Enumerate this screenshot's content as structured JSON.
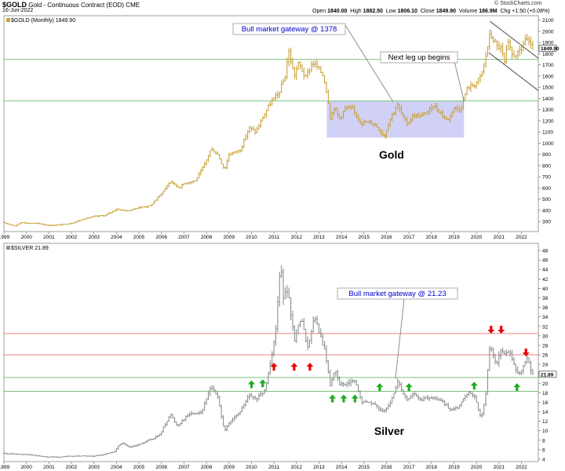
{
  "header": {
    "symbol": "$GOLD",
    "description": "Gold - Continuous Contract (EOD) CME",
    "date": "16-Jun-2022",
    "copyright": "© StockCharts.com",
    "open_label": "Open",
    "open": "1840.00",
    "high_label": "High",
    "high": "1882.50",
    "low_label": "Low",
    "low": "1806.10",
    "close_label": "Close",
    "close": "1849.90",
    "volume_label": "Volume",
    "volume": "186.9M",
    "chg_label": "Chg",
    "chg": "+1.50 (+0.08%)"
  },
  "colors": {
    "gold_bar": "#caa23a",
    "silver_bar": "#8a9094",
    "green_line": "#7cc27c",
    "red_line": "#f08080",
    "box_fill": "#c9c9f7",
    "annotation_text": "#0000cc",
    "arrow_red": "#ee0000",
    "arrow_green": "#22aa22"
  },
  "chart_data": [
    {
      "type": "ohlc",
      "legend": "$GOLD (Monthly) 1849.90",
      "label": "Gold",
      "last_value": "1849.90",
      "x_ticks": [
        "1999",
        "2000",
        "2001",
        "2002",
        "2003",
        "2004",
        "2005",
        "2006",
        "2007",
        "2008",
        "2009",
        "2010",
        "2011",
        "2012",
        "2013",
        "2014",
        "2015",
        "2016",
        "2017",
        "2018",
        "2019",
        "2020",
        "2021",
        "2022"
      ],
      "y_ticks": [
        300,
        400,
        500,
        600,
        700,
        800,
        900,
        1000,
        1100,
        1200,
        1300,
        1400,
        1500,
        1600,
        1700,
        1800,
        1900,
        2000,
        2100
      ],
      "ylim": [
        210,
        2140
      ],
      "xlim": [
        1999.0,
        2022.75
      ],
      "horizontal_lines": [
        1378,
        1750
      ],
      "shaded_box": {
        "x_start": 2013.35,
        "x_end": 2019.45,
        "y_low": 1050,
        "y_high": 1375
      },
      "channel_lines": [
        {
          "points": [
            [
              2020.6,
              2090
            ],
            [
              2022.75,
              1760
            ]
          ]
        },
        {
          "points": [
            [
              2020.55,
              1810
            ],
            [
              2022.75,
              1470
            ]
          ]
        }
      ],
      "annotations": [
        {
          "text": "Bull market gateway @ 1378",
          "boxed": true,
          "pointer_to": [
            2016.3,
            1370
          ]
        },
        {
          "text": "Next leg up begins",
          "boxed": true,
          "pointer_to": [
            2019.45,
            1375
          ]
        }
      ],
      "anchors": [
        [
          1999.0,
          288
        ],
        [
          1999.5,
          262
        ],
        [
          1999.8,
          295
        ],
        [
          2000.0,
          285
        ],
        [
          2000.5,
          283
        ],
        [
          2001.0,
          265
        ],
        [
          2001.5,
          270
        ],
        [
          2002.0,
          285
        ],
        [
          2002.5,
          320
        ],
        [
          2003.0,
          345
        ],
        [
          2003.5,
          355
        ],
        [
          2004.0,
          410
        ],
        [
          2004.5,
          395
        ],
        [
          2005.0,
          425
        ],
        [
          2005.5,
          440
        ],
        [
          2006.0,
          550
        ],
        [
          2006.4,
          660
        ],
        [
          2006.8,
          600
        ],
        [
          2007.0,
          640
        ],
        [
          2007.5,
          665
        ],
        [
          2007.9,
          800
        ],
        [
          2008.2,
          950
        ],
        [
          2008.5,
          900
        ],
        [
          2008.8,
          760
        ],
        [
          2009.0,
          900
        ],
        [
          2009.5,
          940
        ],
        [
          2009.9,
          1140
        ],
        [
          2010.2,
          1100
        ],
        [
          2010.5,
          1230
        ],
        [
          2010.9,
          1380
        ],
        [
          2011.2,
          1440
        ],
        [
          2011.5,
          1600
        ],
        [
          2011.65,
          1830
        ],
        [
          2011.9,
          1600
        ],
        [
          2012.1,
          1720
        ],
        [
          2012.4,
          1580
        ],
        [
          2012.7,
          1720
        ],
        [
          2012.9,
          1690
        ],
        [
          2013.2,
          1600
        ],
        [
          2013.4,
          1400
        ],
        [
          2013.5,
          1230
        ],
        [
          2013.7,
          1330
        ],
        [
          2013.9,
          1220
        ],
        [
          2014.2,
          1320
        ],
        [
          2014.5,
          1300
        ],
        [
          2014.9,
          1180
        ],
        [
          2015.2,
          1190
        ],
        [
          2015.5,
          1170
        ],
        [
          2015.9,
          1060
        ],
        [
          2016.2,
          1240
        ],
        [
          2016.5,
          1340
        ],
        [
          2016.9,
          1170
        ],
        [
          2017.2,
          1250
        ],
        [
          2017.5,
          1240
        ],
        [
          2017.9,
          1290
        ],
        [
          2018.1,
          1340
        ],
        [
          2018.5,
          1250
        ],
        [
          2018.7,
          1200
        ],
        [
          2019.0,
          1320
        ],
        [
          2019.3,
          1300
        ],
        [
          2019.45,
          1410
        ],
        [
          2019.6,
          1500
        ],
        [
          2019.9,
          1520
        ],
        [
          2020.2,
          1600
        ],
        [
          2020.4,
          1760
        ],
        [
          2020.6,
          1980
        ],
        [
          2020.9,
          1870
        ],
        [
          2021.1,
          1850
        ],
        [
          2021.25,
          1720
        ],
        [
          2021.4,
          1900
        ],
        [
          2021.6,
          1780
        ],
        [
          2021.9,
          1810
        ],
        [
          2022.1,
          1900
        ],
        [
          2022.2,
          1950
        ],
        [
          2022.35,
          1890
        ],
        [
          2022.46,
          1849.9
        ]
      ]
    },
    {
      "type": "ohlc",
      "legend": "$SILVER 21.89",
      "label": "Silver",
      "last_value": "21.89",
      "x_ticks": [
        "1999",
        "2000",
        "2001",
        "2002",
        "2003",
        "2004",
        "2005",
        "2006",
        "2007",
        "2008",
        "2009",
        "2010",
        "2011",
        "2012",
        "2013",
        "2014",
        "2015",
        "2016",
        "2017",
        "2018",
        "2019",
        "2020",
        "2021",
        "2022"
      ],
      "y_ticks": [
        4,
        6,
        8,
        10,
        12,
        14,
        16,
        18,
        20,
        22,
        24,
        26,
        28,
        30,
        32,
        34,
        36,
        38,
        40,
        42,
        44,
        46,
        48
      ],
      "ylim": [
        3.5,
        49.5
      ],
      "xlim": [
        1999.0,
        2022.75
      ],
      "horizontal_lines": [
        {
          "value": 30.5,
          "color": "red"
        },
        {
          "value": 26.0,
          "color": "red"
        },
        {
          "value": 21.23,
          "color": "green"
        },
        {
          "value": 18.3,
          "color": "green"
        }
      ],
      "annotations": [
        {
          "text": "Bull market gateway @ 21.23",
          "boxed": true,
          "pointer_to": [
            2016.4,
            21.0
          ]
        }
      ],
      "arrows": [
        {
          "direction": "up",
          "color": "red",
          "x": 2011.0,
          "y": 23.5
        },
        {
          "direction": "up",
          "color": "red",
          "x": 2011.9,
          "y": 23.5
        },
        {
          "direction": "up",
          "color": "red",
          "x": 2012.6,
          "y": 23.5
        },
        {
          "direction": "up",
          "color": "green",
          "x": 2010.0,
          "y": 19.8
        },
        {
          "direction": "up",
          "color": "green",
          "x": 2010.5,
          "y": 20.0
        },
        {
          "direction": "up",
          "color": "green",
          "x": 2013.6,
          "y": 16.8
        },
        {
          "direction": "up",
          "color": "green",
          "x": 2014.1,
          "y": 16.8
        },
        {
          "direction": "up",
          "color": "green",
          "x": 2014.6,
          "y": 16.8
        },
        {
          "direction": "up",
          "color": "green",
          "x": 2015.7,
          "y": 19.2
        },
        {
          "direction": "up",
          "color": "green",
          "x": 2017.0,
          "y": 19.2
        },
        {
          "direction": "up",
          "color": "green",
          "x": 2019.9,
          "y": 19.5
        },
        {
          "direction": "up",
          "color": "green",
          "x": 2021.8,
          "y": 19.2
        },
        {
          "direction": "down",
          "color": "red",
          "x": 2020.65,
          "y": 31.3
        },
        {
          "direction": "down",
          "color": "red",
          "x": 2021.1,
          "y": 31.3
        },
        {
          "direction": "down",
          "color": "red",
          "x": 2022.2,
          "y": 26.5
        }
      ],
      "anchors": [
        [
          1999.0,
          5.2
        ],
        [
          2000.0,
          5.0
        ],
        [
          2001.0,
          4.4
        ],
        [
          2001.9,
          4.6
        ],
        [
          2002.5,
          4.7
        ],
        [
          2003.0,
          4.6
        ],
        [
          2003.9,
          5.5
        ],
        [
          2004.2,
          7.5
        ],
        [
          2004.6,
          6.5
        ],
        [
          2005.0,
          7.0
        ],
        [
          2005.9,
          9.0
        ],
        [
          2006.4,
          13.5
        ],
        [
          2006.7,
          11.0
        ],
        [
          2007.2,
          13.5
        ],
        [
          2007.8,
          14.0
        ],
        [
          2008.2,
          19.5
        ],
        [
          2008.5,
          17.0
        ],
        [
          2008.8,
          10.0
        ],
        [
          2009.0,
          11.5
        ],
        [
          2009.5,
          14.0
        ],
        [
          2009.9,
          17.5
        ],
        [
          2010.2,
          16.5
        ],
        [
          2010.6,
          18.5
        ],
        [
          2010.9,
          26.0
        ],
        [
          2011.1,
          32.0
        ],
        [
          2011.3,
          47.0
        ],
        [
          2011.4,
          38.0
        ],
        [
          2011.6,
          40.0
        ],
        [
          2011.9,
          29.0
        ],
        [
          2012.2,
          34.0
        ],
        [
          2012.5,
          27.5
        ],
        [
          2012.8,
          34.0
        ],
        [
          2013.0,
          31.0
        ],
        [
          2013.3,
          26.0
        ],
        [
          2013.5,
          19.5
        ],
        [
          2013.7,
          23.0
        ],
        [
          2013.9,
          19.8
        ],
        [
          2014.3,
          20.0
        ],
        [
          2014.6,
          20.5
        ],
        [
          2014.9,
          16.0
        ],
        [
          2015.3,
          16.0
        ],
        [
          2015.6,
          15.0
        ],
        [
          2015.9,
          14.0
        ],
        [
          2016.2,
          16.0
        ],
        [
          2016.5,
          20.5
        ],
        [
          2016.9,
          16.5
        ],
        [
          2017.2,
          18.0
        ],
        [
          2017.5,
          16.5
        ],
        [
          2017.9,
          17.0
        ],
        [
          2018.4,
          16.5
        ],
        [
          2018.8,
          14.5
        ],
        [
          2019.2,
          15.0
        ],
        [
          2019.6,
          18.0
        ],
        [
          2019.9,
          17.5
        ],
        [
          2020.2,
          12.5
        ],
        [
          2020.4,
          17.0
        ],
        [
          2020.6,
          28.0
        ],
        [
          2020.9,
          24.0
        ],
        [
          2021.1,
          27.0
        ],
        [
          2021.5,
          26.0
        ],
        [
          2021.8,
          22.0
        ],
        [
          2022.0,
          22.5
        ],
        [
          2022.25,
          25.5
        ],
        [
          2022.46,
          21.89
        ]
      ]
    }
  ]
}
